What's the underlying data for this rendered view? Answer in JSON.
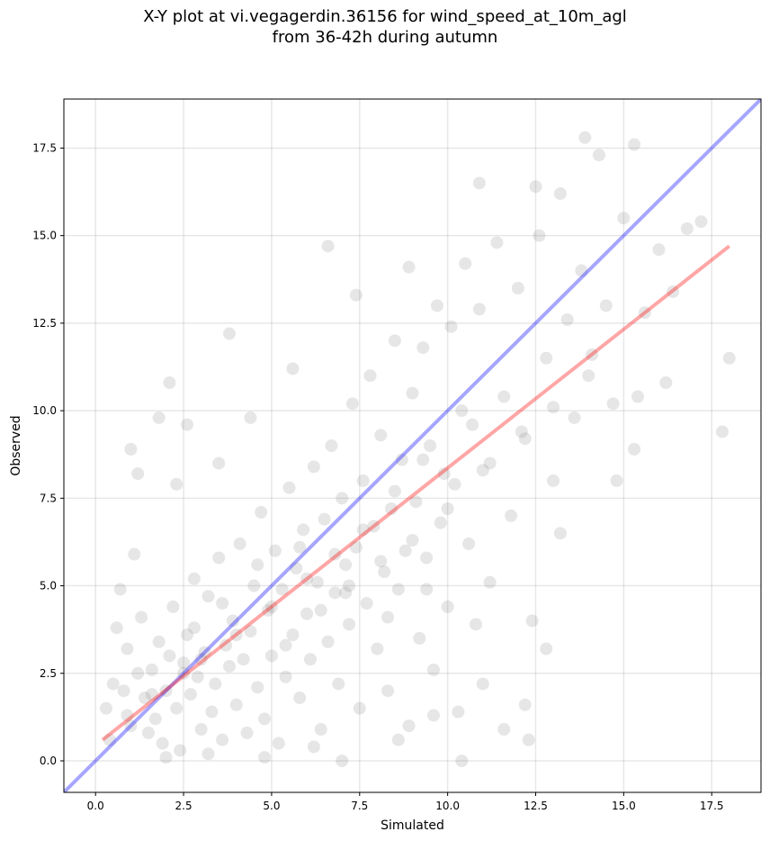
{
  "chart_data": {
    "type": "scatter",
    "title_line1": "X-Y plot at vi.vegagerdin.36156 for wind_speed_at_10m_agl",
    "title_line2": "from 36-42h during autumn",
    "xlabel": "Simulated",
    "ylabel": "Observed",
    "xlim": [
      -0.9,
      18.9
    ],
    "ylim": [
      -0.9,
      18.9
    ],
    "xticks": [
      "0.0",
      "2.5",
      "5.0",
      "7.5",
      "10.0",
      "12.5",
      "15.0",
      "17.5"
    ],
    "yticks": [
      "0.0",
      "2.5",
      "5.0",
      "7.5",
      "10.0",
      "12.5",
      "15.0",
      "17.5"
    ],
    "grid": true,
    "series": [
      {
        "kind": "points",
        "color": "#808080",
        "opacity": 0.2,
        "points": [
          [
            0.5,
            2.2
          ],
          [
            0.3,
            1.5
          ],
          [
            0.6,
            3.8
          ],
          [
            0.8,
            2.0
          ],
          [
            1.0,
            1.0
          ],
          [
            1.2,
            2.5
          ],
          [
            0.9,
            3.2
          ],
          [
            1.4,
            1.8
          ],
          [
            1.6,
            2.6
          ],
          [
            1.3,
            4.1
          ],
          [
            1.5,
            0.8
          ],
          [
            1.8,
            3.4
          ],
          [
            1.7,
            1.2
          ],
          [
            2.0,
            2.0
          ],
          [
            2.1,
            3.0
          ],
          [
            1.9,
            0.5
          ],
          [
            2.2,
            4.4
          ],
          [
            2.3,
            1.5
          ],
          [
            2.5,
            2.8
          ],
          [
            2.4,
            0.3
          ],
          [
            2.6,
            3.6
          ],
          [
            2.7,
            1.9
          ],
          [
            2.8,
            5.2
          ],
          [
            2.9,
            2.4
          ],
          [
            3.0,
            0.9
          ],
          [
            3.1,
            3.1
          ],
          [
            3.2,
            4.7
          ],
          [
            3.3,
            1.4
          ],
          [
            3.4,
            2.2
          ],
          [
            3.5,
            5.8
          ],
          [
            3.6,
            0.6
          ],
          [
            3.7,
            3.3
          ],
          [
            3.8,
            2.7
          ],
          [
            3.9,
            4.0
          ],
          [
            4.0,
            1.6
          ],
          [
            4.1,
            6.2
          ],
          [
            4.2,
            2.9
          ],
          [
            4.3,
            0.8
          ],
          [
            4.4,
            3.7
          ],
          [
            4.5,
            5.0
          ],
          [
            4.6,
            2.1
          ],
          [
            4.7,
            7.1
          ],
          [
            4.8,
            1.2
          ],
          [
            4.9,
            4.3
          ],
          [
            5.0,
            3.0
          ],
          [
            5.1,
            6.0
          ],
          [
            5.2,
            0.5
          ],
          [
            5.3,
            4.9
          ],
          [
            5.4,
            2.4
          ],
          [
            5.5,
            7.8
          ],
          [
            5.6,
            3.6
          ],
          [
            5.7,
            5.5
          ],
          [
            5.8,
            1.8
          ],
          [
            5.9,
            6.6
          ],
          [
            6.0,
            4.2
          ],
          [
            6.1,
            2.9
          ],
          [
            6.2,
            8.4
          ],
          [
            6.3,
            5.1
          ],
          [
            6.4,
            0.9
          ],
          [
            6.5,
            6.9
          ],
          [
            6.6,
            3.4
          ],
          [
            6.7,
            9.0
          ],
          [
            6.8,
            4.8
          ],
          [
            6.9,
            2.2
          ],
          [
            7.0,
            7.5
          ],
          [
            7.1,
            5.6
          ],
          [
            7.2,
            3.9
          ],
          [
            7.3,
            10.2
          ],
          [
            7.4,
            6.1
          ],
          [
            7.5,
            1.5
          ],
          [
            7.6,
            8.0
          ],
          [
            7.7,
            4.5
          ],
          [
            7.8,
            11.0
          ],
          [
            7.9,
            6.7
          ],
          [
            8.0,
            3.2
          ],
          [
            8.1,
            9.3
          ],
          [
            8.2,
            5.4
          ],
          [
            8.3,
            2.0
          ],
          [
            8.4,
            7.2
          ],
          [
            8.5,
            12.0
          ],
          [
            8.6,
            4.9
          ],
          [
            8.7,
            8.6
          ],
          [
            8.8,
            6.0
          ],
          [
            8.9,
            1.0
          ],
          [
            9.0,
            10.5
          ],
          [
            9.1,
            7.4
          ],
          [
            9.2,
            3.5
          ],
          [
            9.3,
            11.8
          ],
          [
            9.4,
            5.8
          ],
          [
            9.5,
            9.0
          ],
          [
            9.6,
            2.6
          ],
          [
            9.7,
            13.0
          ],
          [
            9.8,
            6.8
          ],
          [
            9.9,
            8.2
          ],
          [
            10.0,
            4.4
          ],
          [
            10.1,
            12.4
          ],
          [
            10.2,
            7.9
          ],
          [
            10.3,
            1.4
          ],
          [
            10.4,
            10.0
          ],
          [
            10.5,
            14.2
          ],
          [
            10.6,
            6.2
          ],
          [
            10.7,
            9.6
          ],
          [
            10.8,
            3.9
          ],
          [
            10.9,
            12.9
          ],
          [
            11.0,
            8.3
          ],
          [
            11.2,
            5.1
          ],
          [
            11.4,
            14.8
          ],
          [
            11.6,
            10.4
          ],
          [
            11.8,
            7.0
          ],
          [
            12.0,
            13.5
          ],
          [
            12.2,
            9.2
          ],
          [
            12.4,
            4.0
          ],
          [
            12.6,
            15.0
          ],
          [
            12.8,
            11.5
          ],
          [
            13.0,
            8.0
          ],
          [
            13.2,
            16.2
          ],
          [
            13.4,
            12.6
          ],
          [
            13.6,
            9.8
          ],
          [
            13.8,
            14.0
          ],
          [
            14.0,
            11.0
          ],
          [
            14.3,
            17.3
          ],
          [
            14.5,
            13.0
          ],
          [
            14.7,
            10.2
          ],
          [
            15.0,
            15.5
          ],
          [
            15.3,
            8.9
          ],
          [
            15.6,
            12.8
          ],
          [
            16.0,
            14.6
          ],
          [
            16.4,
            13.4
          ],
          [
            16.8,
            15.2
          ],
          [
            17.2,
            15.4
          ],
          [
            17.8,
            9.4
          ],
          [
            18.0,
            11.5
          ],
          [
            0.4,
            0.6
          ],
          [
            0.7,
            4.9
          ],
          [
            1.1,
            5.9
          ],
          [
            1.2,
            8.2
          ],
          [
            1.8,
            9.8
          ],
          [
            2.1,
            10.8
          ],
          [
            2.6,
            9.6
          ],
          [
            3.8,
            12.2
          ],
          [
            6.6,
            14.7
          ],
          [
            10.9,
            16.5
          ],
          [
            13.9,
            17.8
          ],
          [
            15.3,
            17.6
          ],
          [
            1.0,
            8.9
          ],
          [
            2.3,
            7.9
          ],
          [
            3.5,
            8.5
          ],
          [
            4.4,
            9.8
          ],
          [
            5.6,
            11.2
          ],
          [
            7.4,
            13.3
          ],
          [
            8.9,
            14.1
          ],
          [
            12.5,
            16.4
          ],
          [
            2.0,
            0.1
          ],
          [
            3.2,
            0.2
          ],
          [
            4.8,
            0.1
          ],
          [
            6.2,
            0.4
          ],
          [
            7.0,
            0.0
          ],
          [
            8.6,
            0.6
          ],
          [
            10.4,
            0.0
          ],
          [
            12.3,
            0.6
          ],
          [
            11.6,
            0.9
          ],
          [
            9.6,
            1.3
          ],
          [
            11.0,
            2.2
          ],
          [
            12.2,
            1.6
          ],
          [
            12.8,
            3.2
          ],
          [
            13.2,
            6.5
          ],
          [
            14.8,
            8.0
          ],
          [
            15.4,
            10.4
          ],
          [
            16.2,
            10.8
          ],
          [
            14.1,
            11.6
          ],
          [
            9.4,
            4.9
          ],
          [
            8.3,
            4.1
          ],
          [
            7.1,
            4.8
          ],
          [
            6.0,
            5.2
          ],
          [
            5.0,
            4.4
          ],
          [
            4.0,
            3.6
          ],
          [
            3.0,
            2.9
          ],
          [
            2.5,
            2.5
          ],
          [
            1.6,
            1.9
          ],
          [
            0.9,
            1.3
          ],
          [
            5.8,
            6.1
          ],
          [
            6.8,
            5.9
          ],
          [
            7.6,
            6.6
          ],
          [
            8.5,
            7.7
          ],
          [
            9.3,
            8.6
          ],
          [
            4.6,
            5.6
          ],
          [
            3.6,
            4.5
          ],
          [
            2.8,
            3.8
          ],
          [
            5.4,
            3.3
          ],
          [
            6.4,
            4.3
          ],
          [
            7.2,
            5.0
          ],
          [
            8.1,
            5.7
          ],
          [
            9.0,
            6.3
          ],
          [
            10.0,
            7.2
          ],
          [
            11.2,
            8.5
          ],
          [
            12.1,
            9.4
          ],
          [
            13.0,
            10.1
          ]
        ]
      },
      {
        "kind": "line",
        "name": "",
        "color": "#0000ff",
        "opacity": 0.35,
        "x": [
          -0.9,
          18.9
        ],
        "y": [
          -0.9,
          18.9
        ]
      },
      {
        "kind": "line",
        "name": "",
        "color": "#ff0000",
        "opacity": 0.35,
        "x": [
          0.2,
          18.0
        ],
        "y": [
          0.6,
          14.7
        ]
      }
    ]
  }
}
